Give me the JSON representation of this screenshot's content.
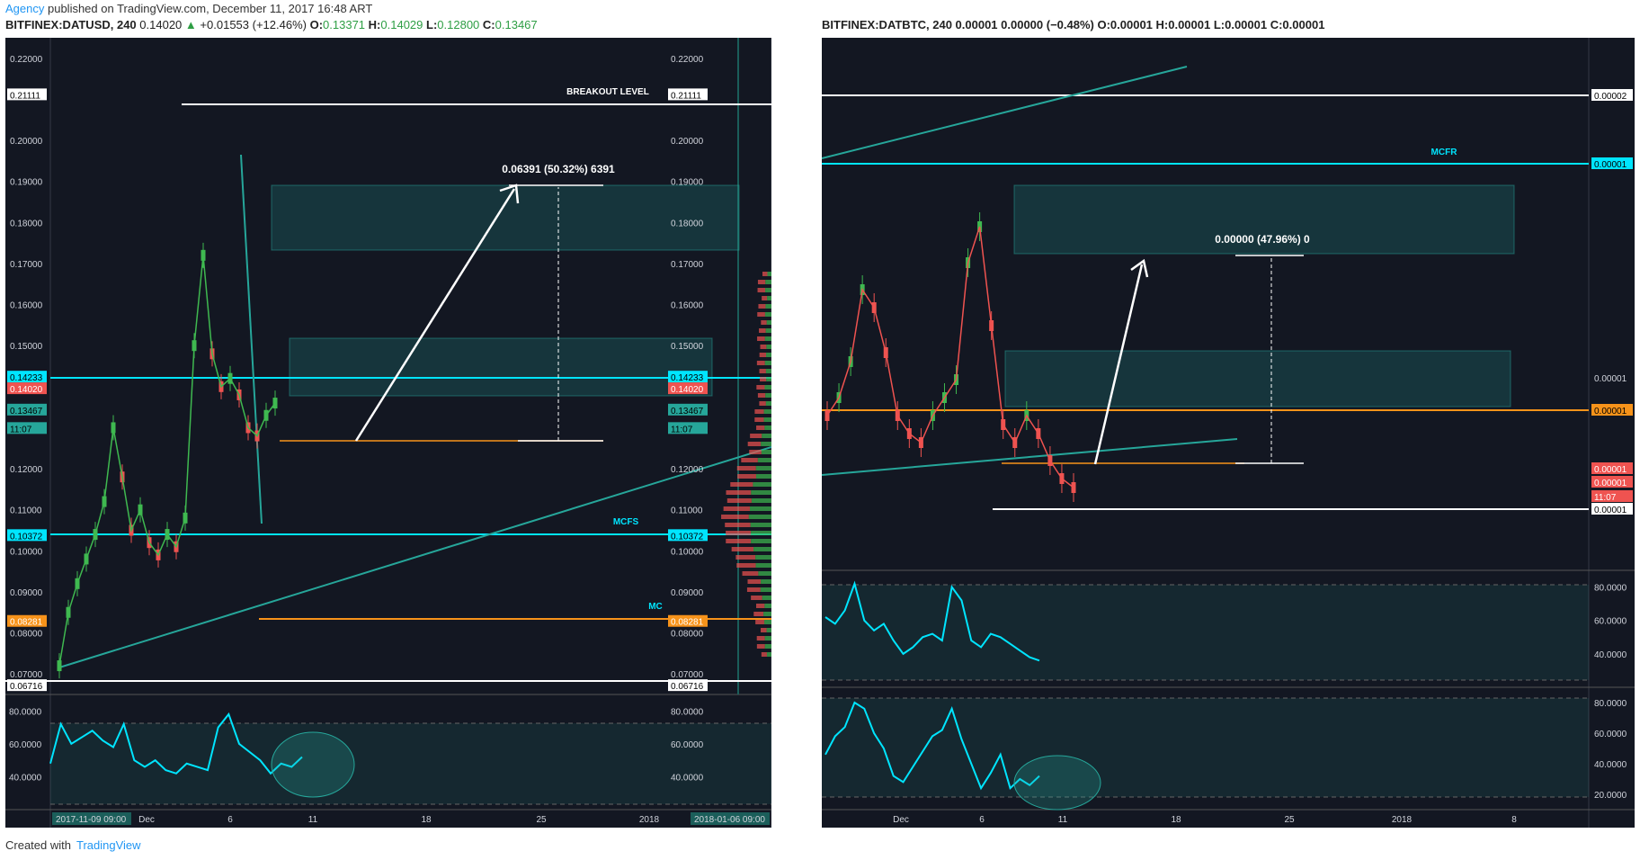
{
  "header": {
    "brand": "Agency",
    "published": " published on TradingView.com, December 11, 2017 16:48 ART"
  },
  "left_header": {
    "symbol": "BITFINEX:DATUSD, 240",
    "last": "0.14020",
    "arrow": "▲",
    "change": "+0.01553 (+12.46%)",
    "o_label": "O:",
    "o": "0.13371",
    "h_label": "H:",
    "h": "0.14029",
    "l_label": "L:",
    "l": "0.12800",
    "c_label": "C:",
    "c": "0.13467"
  },
  "right_header": {
    "text": "BITFINEX:DATBTC, 240  0.00001 0.00000 (−0.48%) O:0.00001 H:0.00001 L:0.00001 C:0.00001"
  },
  "colors": {
    "bg": "#131722",
    "cyan": "#00e5ff",
    "orange": "#f7931a",
    "green": "#3fb950",
    "red": "#ef5350",
    "teal_zone": "rgba(38,166,154,0.22)",
    "white": "#ffffff"
  },
  "chart_data": [
    {
      "type": "line",
      "name": "DATUSD 240",
      "ylim": [
        0.065,
        0.225
      ],
      "y_ticks": [
        "0.22000",
        "0.21111",
        "0.20000",
        "0.19000",
        "0.18000",
        "0.17000",
        "0.16000",
        "0.15000",
        "0.14233",
        "0.14020",
        "0.13467",
        "11:07",
        "0.12000",
        "0.11000",
        "0.10372",
        "0.10000",
        "0.09000",
        "0.08281",
        "0.08000",
        "0.07000",
        "0.06716"
      ],
      "x_ticks": [
        "2017-11-09 09:00",
        "Dec",
        "6",
        "11",
        "18",
        "25",
        "2018",
        "2018-01-06 09:00"
      ],
      "annotations": [
        {
          "text": "BREAKOUT LEVEL",
          "level": 0.21111
        },
        {
          "text": "0.06391 (50.32%) 6391"
        },
        {
          "text": "MCFS",
          "level": 0.10372
        },
        {
          "text": "MC",
          "level": 0.08281
        }
      ],
      "levels": {
        "resistance": 0.21111,
        "mcfs": 0.10372,
        "mc": 0.08281,
        "support": 0.06716,
        "cyan": 0.14233,
        "target": 0.1905,
        "entry": 0.1265
      },
      "price": [
        0.072,
        0.085,
        0.092,
        0.098,
        0.104,
        0.112,
        0.13,
        0.118,
        0.105,
        0.11,
        0.102,
        0.099,
        0.104,
        0.101,
        0.108,
        0.15,
        0.172,
        0.148,
        0.14,
        0.142,
        0.138,
        0.13,
        0.128,
        0.133,
        0.136
      ],
      "rsi": {
        "ylim": [
          20,
          90
        ],
        "y_ticks": [
          "80.0000",
          "60.0000",
          "40.0000"
        ],
        "values": [
          48,
          72,
          60,
          64,
          68,
          62,
          58,
          72,
          50,
          46,
          50,
          44,
          42,
          48,
          46,
          44,
          70,
          78,
          60,
          55,
          50,
          42,
          48,
          46,
          52
        ]
      }
    },
    {
      "type": "line",
      "name": "DATBTC 240",
      "y_ticks": [
        "0.00002",
        "0.00001",
        "0.00001",
        "0.00001",
        "0.00001",
        "0.00001",
        "11:07",
        "0.00001"
      ],
      "x_ticks": [
        "Dec",
        "6",
        "11",
        "18",
        "25",
        "2018",
        "8"
      ],
      "annotations": [
        {
          "text": "MCFR"
        },
        {
          "text": "0.00000 (47.96%) 0"
        }
      ],
      "rsi1": {
        "y_ticks": [
          "80.0000",
          "60.0000",
          "40.0000"
        ],
        "values": [
          62,
          58,
          66,
          82,
          60,
          54,
          58,
          48,
          40,
          44,
          50,
          52,
          48,
          80,
          72,
          48,
          44,
          52,
          50,
          46,
          42,
          38,
          36
        ]
      },
      "rsi2": {
        "y_ticks": [
          "80.0000",
          "60.0000",
          "40.0000",
          "20.0000"
        ],
        "values": [
          46,
          58,
          64,
          80,
          76,
          60,
          50,
          32,
          28,
          38,
          48,
          58,
          62,
          76,
          56,
          40,
          24,
          34,
          46,
          24,
          30,
          26,
          32
        ]
      }
    }
  ],
  "footer": {
    "created": "Created with",
    "tv": "TradingView"
  }
}
